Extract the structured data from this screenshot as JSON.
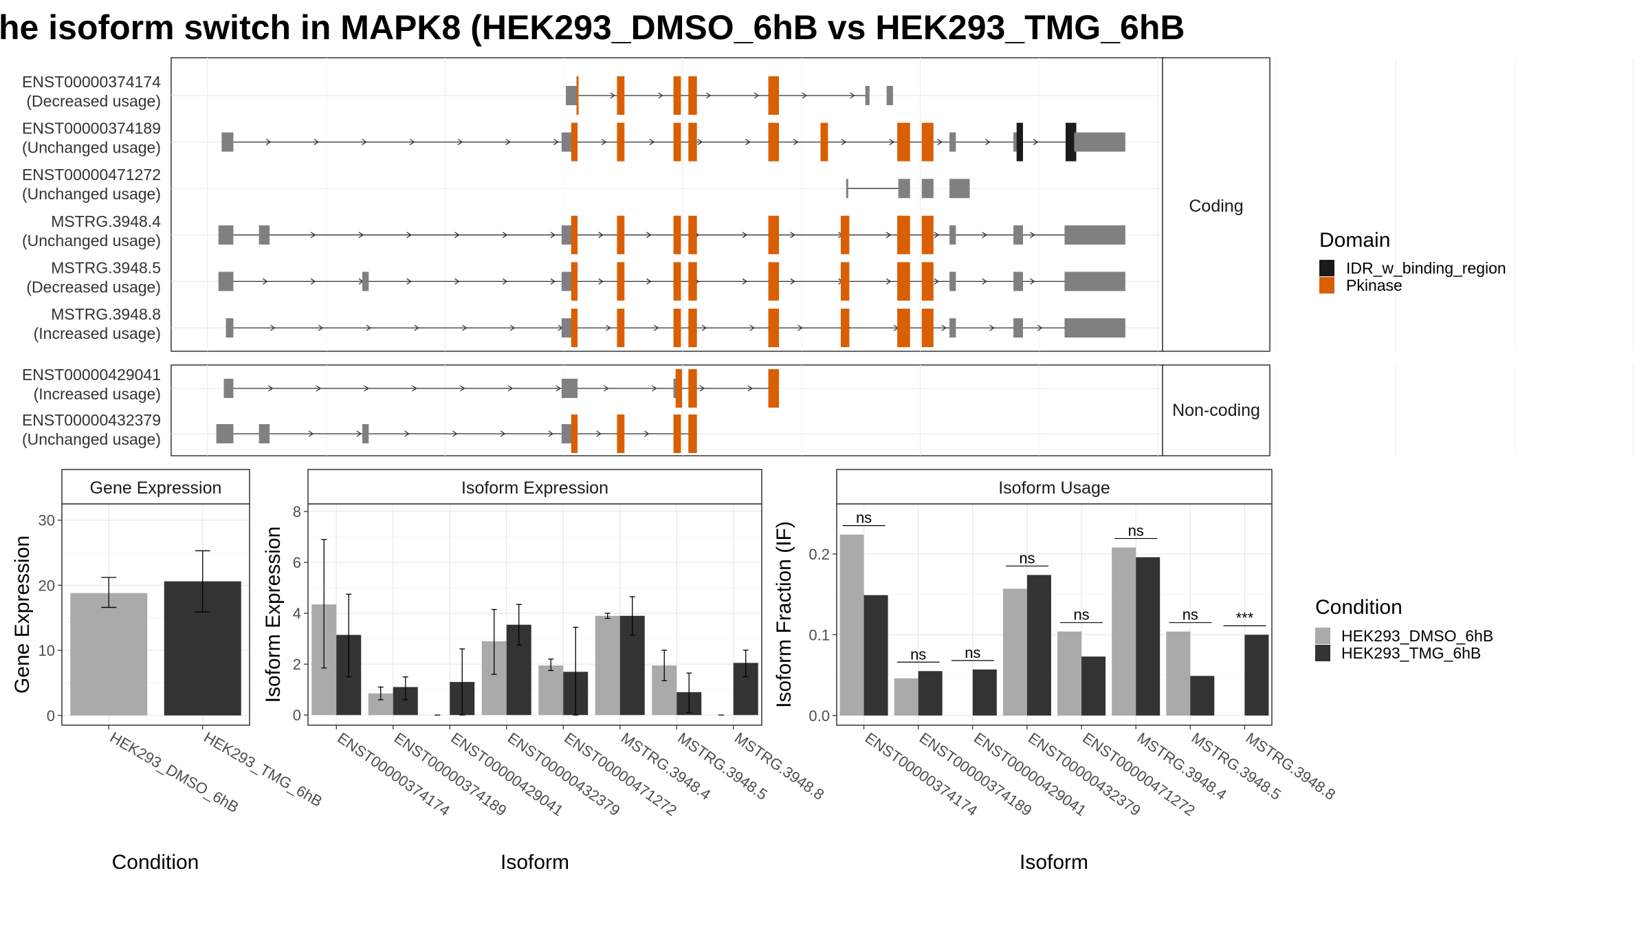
{
  "title": "he isoform switch in MAPK8 (HEK293_DMSO_6hB vs HEK293_TMG_6hB",
  "colors": {
    "exon": "#808080",
    "idr": "#1a1a1a",
    "pkinase": "#d95f02",
    "dmso": "#aaaaaa",
    "tmg": "#333333"
  },
  "transcript_panel": {
    "coding_label": "Coding",
    "noncoding_label": "Non-coding",
    "coding": [
      {
        "id": "ENST00000374174",
        "usage": "(Decreased usage)",
        "introns": [
          [
            531,
            813
          ]
        ],
        "exons": [
          [
            531,
            541,
            "exon"
          ],
          [
            541,
            541,
            "pk"
          ],
          [
            579,
            586,
            "pk"
          ],
          [
            632,
            639,
            "pk"
          ],
          [
            646,
            654,
            "pk"
          ],
          [
            721,
            731,
            "pk"
          ],
          [
            812,
            816,
            "exon"
          ],
          [
            832,
            838,
            "exon"
          ]
        ]
      },
      {
        "id": "ENST00000374189",
        "usage": "(Unchanged usage)",
        "introns": [
          [
            208,
            1010
          ]
        ],
        "exons": [
          [
            208,
            219,
            "exon"
          ],
          [
            527,
            541,
            "exon"
          ],
          [
            536,
            542,
            "pk"
          ],
          [
            579,
            586,
            "pk"
          ],
          [
            632,
            639,
            "pk"
          ],
          [
            646,
            654,
            "pk"
          ],
          [
            721,
            731,
            "pk"
          ],
          [
            770,
            777,
            "pk"
          ],
          [
            842,
            854,
            "pk"
          ],
          [
            865,
            876,
            "pk"
          ],
          [
            891,
            897,
            "exon"
          ],
          [
            951,
            960,
            "exon"
          ],
          [
            954,
            960,
            "idr"
          ],
          [
            1000,
            1010,
            "idr"
          ],
          [
            1008,
            1056,
            "exon"
          ]
        ]
      },
      {
        "id": "ENST00000471272",
        "usage": "(Unchanged usage)",
        "introns": [
          [
            795,
            845
          ]
        ],
        "exons": [
          [
            794,
            796,
            "exon"
          ],
          [
            843,
            854,
            "exon"
          ],
          [
            865,
            876,
            "exon"
          ],
          [
            891,
            910,
            "exon"
          ]
        ]
      },
      {
        "id": "MSTRG.3948.4",
        "usage": "(Unchanged usage)",
        "introns": [
          [
            205,
            1000
          ]
        ],
        "exons": [
          [
            205,
            219,
            "exon"
          ],
          [
            243,
            253,
            "exon"
          ],
          [
            527,
            541,
            "exon"
          ],
          [
            536,
            542,
            "pk"
          ],
          [
            579,
            586,
            "pk"
          ],
          [
            632,
            639,
            "pk"
          ],
          [
            646,
            654,
            "pk"
          ],
          [
            721,
            731,
            "pk"
          ],
          [
            789,
            797,
            "pk"
          ],
          [
            842,
            854,
            "pk"
          ],
          [
            865,
            876,
            "pk"
          ],
          [
            891,
            897,
            "exon"
          ],
          [
            951,
            960,
            "exon"
          ],
          [
            999,
            1056,
            "exon"
          ]
        ]
      },
      {
        "id": "MSTRG.3948.5",
        "usage": "(Decreased usage)",
        "introns": [
          [
            205,
            1000
          ]
        ],
        "exons": [
          [
            205,
            219,
            "exon"
          ],
          [
            340,
            346,
            "exon"
          ],
          [
            527,
            541,
            "exon"
          ],
          [
            536,
            542,
            "pk"
          ],
          [
            579,
            586,
            "pk"
          ],
          [
            632,
            639,
            "pk"
          ],
          [
            646,
            654,
            "pk"
          ],
          [
            721,
            731,
            "pk"
          ],
          [
            789,
            797,
            "pk"
          ],
          [
            842,
            854,
            "pk"
          ],
          [
            865,
            876,
            "pk"
          ],
          [
            891,
            897,
            "exon"
          ],
          [
            951,
            960,
            "exon"
          ],
          [
            999,
            1056,
            "exon"
          ]
        ]
      },
      {
        "id": "MSTRG.3948.8",
        "usage": "(Increased usage)",
        "introns": [
          [
            212,
            1000
          ]
        ],
        "exons": [
          [
            212,
            219,
            "exon"
          ],
          [
            527,
            541,
            "exon"
          ],
          [
            536,
            542,
            "pk"
          ],
          [
            579,
            586,
            "pk"
          ],
          [
            632,
            639,
            "pk"
          ],
          [
            646,
            654,
            "pk"
          ],
          [
            721,
            731,
            "pk"
          ],
          [
            789,
            797,
            "pk"
          ],
          [
            842,
            854,
            "pk"
          ],
          [
            865,
            876,
            "pk"
          ],
          [
            891,
            897,
            "exon"
          ],
          [
            951,
            960,
            "exon"
          ],
          [
            999,
            1056,
            "exon"
          ]
        ]
      }
    ],
    "noncoding": [
      {
        "id": "ENST00000429041",
        "usage": "(Increased usage)",
        "introns": [
          [
            210,
            731
          ]
        ],
        "exons": [
          [
            210,
            219,
            "exon"
          ],
          [
            527,
            542,
            "exon"
          ],
          [
            632,
            639,
            "exon"
          ],
          [
            634,
            640,
            "pk"
          ],
          [
            646,
            654,
            "pk"
          ],
          [
            721,
            731,
            "pk"
          ]
        ]
      },
      {
        "id": "ENST00000432379",
        "usage": "(Unchanged usage)",
        "introns": [
          [
            203,
            654
          ]
        ],
        "exons": [
          [
            203,
            219,
            "exon"
          ],
          [
            243,
            253,
            "exon"
          ],
          [
            340,
            346,
            "exon"
          ],
          [
            527,
            542,
            "exon"
          ],
          [
            536,
            542,
            "pk"
          ],
          [
            579,
            586,
            "pk"
          ],
          [
            632,
            639,
            "pk"
          ],
          [
            646,
            654,
            "pk"
          ]
        ]
      }
    ]
  },
  "legend_domain": {
    "title": "Domain",
    "items": [
      {
        "label": "IDR_w_binding_region",
        "color": "#1a1a1a"
      },
      {
        "label": "Pkinase",
        "color": "#d95f02"
      }
    ]
  },
  "legend_condition": {
    "title": "Condition",
    "items": [
      {
        "label": "HEK293_DMSO_6hB",
        "color": "#aaaaaa"
      },
      {
        "label": "HEK293_TMG_6hB",
        "color": "#333333"
      }
    ]
  },
  "chart_data": [
    {
      "type": "bar",
      "title": "Gene Expression",
      "xlabel": "Condition",
      "ylabel": "Gene Expression",
      "ylim": [
        -1.5,
        32.5
      ],
      "yticks": [
        0,
        10,
        20,
        30
      ],
      "categories": [
        "HEK293_DMSO_6hB",
        "HEK293_TMG_6hB"
      ],
      "values": [
        18.8,
        20.6
      ],
      "error_low": [
        16.6,
        15.9
      ],
      "error_high": [
        21.2,
        25.3
      ]
    },
    {
      "type": "bar",
      "title": "Isoform Expression",
      "xlabel": "Isoform",
      "ylabel": "Isoform Expression",
      "ylim": [
        -0.4,
        8.3
      ],
      "yticks": [
        0,
        2,
        4,
        6,
        8
      ],
      "categories": [
        "ENST00000374174",
        "ENST00000374189",
        "ENST00000429041",
        "ENST00000432379",
        "ENST00000471272",
        "MSTRG.3948.4",
        "MSTRG.3948.5",
        "MSTRG.3948.8"
      ],
      "series": [
        {
          "name": "HEK293_DMSO_6hB",
          "values": [
            4.35,
            0.85,
            0.0,
            2.9,
            1.95,
            3.9,
            1.95,
            0.0
          ],
          "error_low": [
            1.85,
            0.6,
            0.0,
            1.6,
            1.75,
            3.8,
            1.35,
            0.0
          ],
          "error_high": [
            6.9,
            1.1,
            0.0,
            4.15,
            2.2,
            4.0,
            2.55,
            0.0
          ]
        },
        {
          "name": "HEK293_TMG_6hB",
          "values": [
            3.15,
            1.1,
            1.3,
            3.55,
            1.7,
            3.9,
            0.9,
            2.05
          ],
          "error_low": [
            1.5,
            0.6,
            0.0,
            2.75,
            0.0,
            3.15,
            0.1,
            1.5
          ],
          "error_high": [
            4.75,
            1.5,
            2.6,
            4.35,
            3.45,
            4.65,
            1.65,
            2.55
          ]
        }
      ]
    },
    {
      "type": "bar",
      "title": "Isoform Usage",
      "xlabel": "Isoform",
      "ylabel": "Isoform Fraction (IF)",
      "ylim": [
        -0.012,
        0.262
      ],
      "yticks": [
        0.0,
        0.1,
        0.2
      ],
      "ytick_labels": [
        "0.0",
        "0.1",
        "0.2"
      ],
      "categories": [
        "ENST00000374174",
        "ENST00000374189",
        "ENST00000429041",
        "ENST00000432379",
        "ENST00000471272",
        "MSTRG.3948.4",
        "MSTRG.3948.5",
        "MSTRG.3948.8"
      ],
      "series": [
        {
          "name": "HEK293_DMSO_6hB",
          "values": [
            0.224,
            0.046,
            0.0,
            0.157,
            0.104,
            0.208,
            0.104,
            0.0
          ]
        },
        {
          "name": "HEK293_TMG_6hB",
          "values": [
            0.149,
            0.055,
            0.057,
            0.174,
            0.073,
            0.196,
            0.049,
            0.1
          ]
        }
      ],
      "significance": [
        "ns",
        "ns",
        "ns",
        "ns",
        "ns",
        "ns",
        "ns",
        "***"
      ]
    }
  ]
}
